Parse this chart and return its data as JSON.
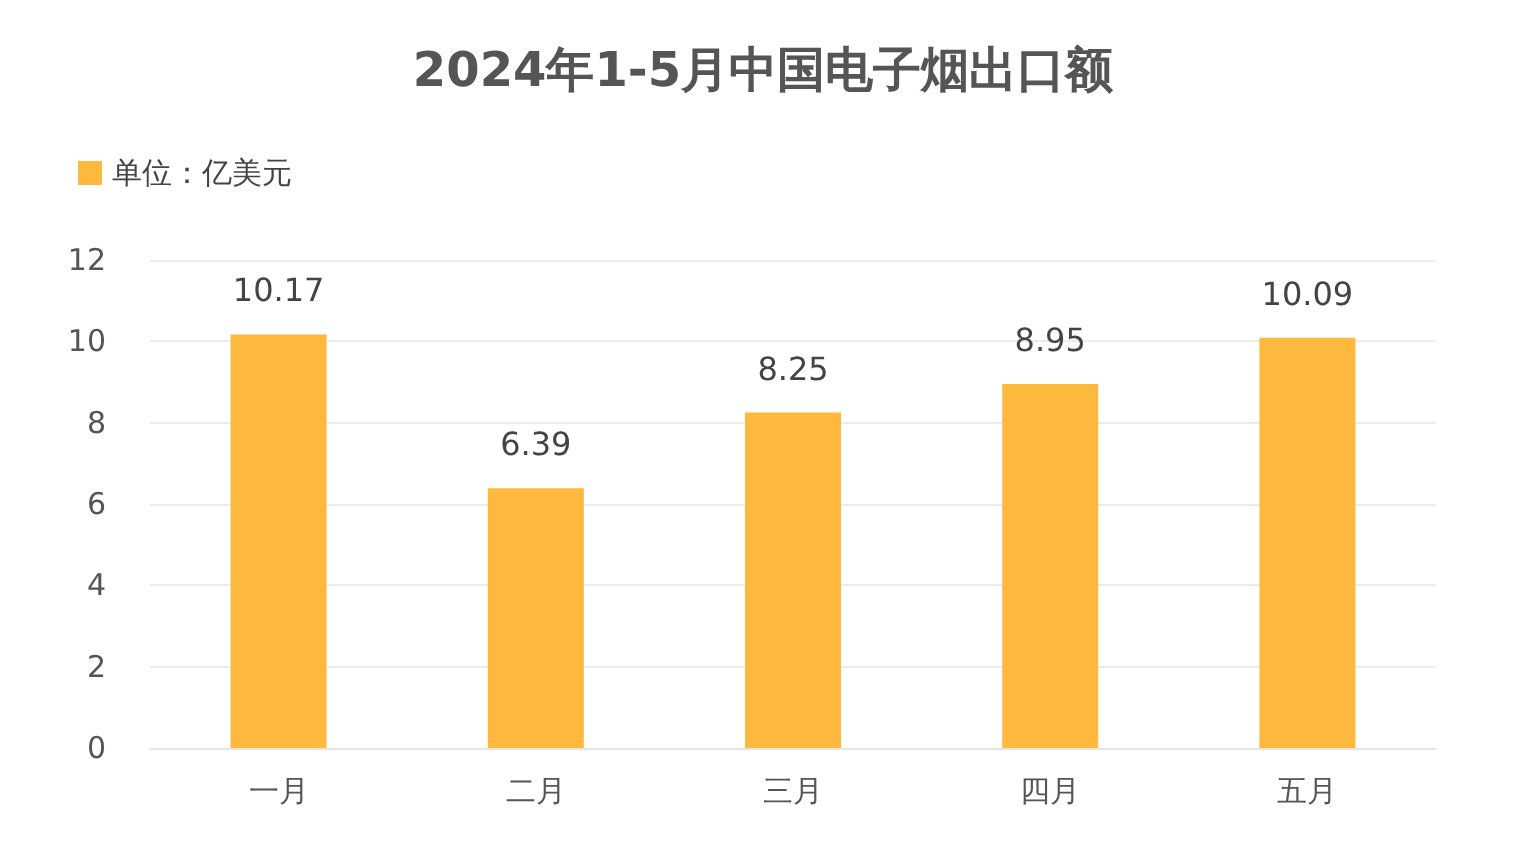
{
  "chart_data": {
    "type": "bar",
    "title": "2024年1-5月中国电子烟出口额",
    "categories": [
      "一月",
      "二月",
      "三月",
      "四月",
      "五月"
    ],
    "series": [
      {
        "name": "单位：亿美元",
        "color": "#fdb93e",
        "values": [
          10.17,
          6.39,
          8.25,
          8.95,
          10.09
        ]
      }
    ],
    "ylim": [
      0,
      12
    ],
    "yticks": [
      0,
      2,
      4,
      6,
      8,
      10,
      12
    ],
    "grid": "y",
    "legend": "top left",
    "data_labels": true
  }
}
